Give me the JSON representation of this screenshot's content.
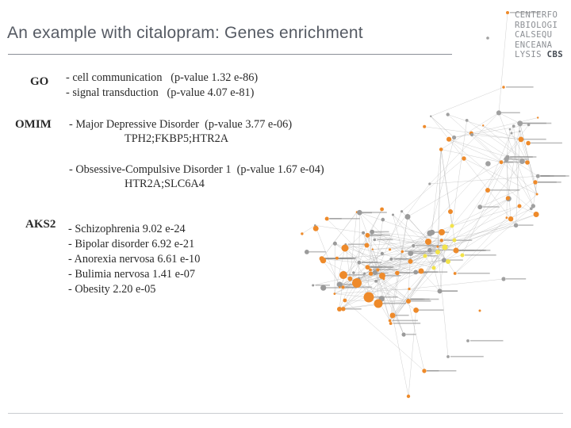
{
  "slide": {
    "title": "An example with citalopram: Genes enrichment"
  },
  "logo": {
    "lines": [
      "CENTERFO",
      "RBIOLOGI",
      "CALSEQU",
      "ENCEANA"
    ],
    "last_prefix": "LYSIS ",
    "last_bold": "CBS"
  },
  "go": {
    "label": "GO",
    "items": [
      "- cell communication   (p-value 1.32 e-86)",
      "- signal transduction   (p-value 4.07 e-81)"
    ]
  },
  "omim": {
    "label": "OMIM",
    "entries": [
      {
        "disease": "- Major Depressive Disorder  (p-value 3.77 e-06)",
        "genes": "TPH2;FKBP5;HTR2A"
      },
      {
        "disease": "- Obsessive-Compulsive Disorder 1  (p-value 1.67 e-04)",
        "genes": "HTR2A;SLC6A4"
      }
    ]
  },
  "aks2": {
    "label": "AKS2",
    "items": [
      "- Schizophrenia 9.02 e-24",
      "- Bipolar disorder 6.92 e-21",
      "- Anorexia nervosa 6.61 e-10",
      "- Bulimia nervosa 1.41 e-07",
      "- Obesity 2.20 e-05"
    ]
  },
  "colors": {
    "title": "#555a63",
    "node_orange": "#ee8a2a",
    "node_yellow": "#f2e34a",
    "edge": "#b0b0b0"
  }
}
